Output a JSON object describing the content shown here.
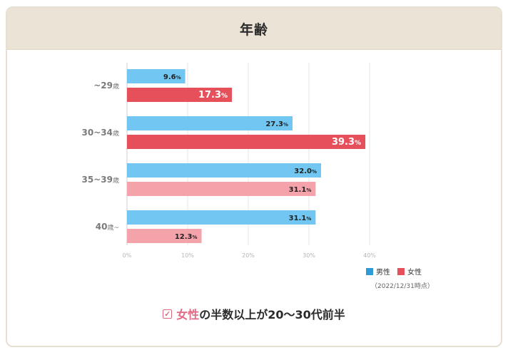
{
  "header": {
    "title": "年齢"
  },
  "chart_data": {
    "type": "bar",
    "orientation": "horizontal",
    "categories": [
      {
        "main": "~29",
        "suffix": "歳",
        "order": "main-first"
      },
      {
        "main": "30~34",
        "suffix": "歳",
        "order": "main-first"
      },
      {
        "main": "35~39",
        "suffix": "歳",
        "order": "main-first"
      },
      {
        "main": "40",
        "suffix": "歳~",
        "order": "main-first"
      }
    ],
    "series": [
      {
        "name": "男性",
        "values": [
          9.6,
          27.3,
          32.0,
          31.1
        ],
        "color": "#71c7f1",
        "emphasized": [
          false,
          false,
          false,
          false
        ]
      },
      {
        "name": "女性",
        "values": [
          17.3,
          39.3,
          31.1,
          12.3
        ],
        "color": "#f5a3ab",
        "emphasized": [
          true,
          true,
          false,
          false
        ],
        "emphasis_color": "#e5505b"
      }
    ],
    "value_suffix": "%",
    "xlim": [
      0,
      40
    ],
    "x_ticks": [
      {
        "label": "0%",
        "value": 0
      },
      {
        "label": "10%",
        "value": 10
      },
      {
        "label": "20%",
        "value": 20
      },
      {
        "label": "30%",
        "value": 30
      },
      {
        "label": "40%",
        "value": 40
      }
    ],
    "grid": true,
    "legend_position": "bottom-right"
  },
  "legend": {
    "male_label": "男性",
    "female_label": "女性",
    "male_color": "#2e9ad8",
    "female_color": "#e5505b"
  },
  "note": "（2022/12/31時点）",
  "summary": {
    "highlight": "女性",
    "rest": "の半数以上が20〜30代前半",
    "check_icon": "check-icon"
  }
}
